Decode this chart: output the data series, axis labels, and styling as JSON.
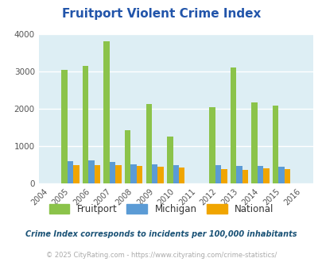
{
  "title": "Fruitport Violent Crime Index",
  "title_color": "#2255aa",
  "years": [
    2004,
    2005,
    2006,
    2007,
    2008,
    2009,
    2010,
    2011,
    2012,
    2013,
    2014,
    2015,
    2016
  ],
  "fruitport": [
    0,
    3050,
    3150,
    3800,
    1420,
    2130,
    1260,
    0,
    2040,
    3110,
    2160,
    2080,
    0
  ],
  "michigan": [
    0,
    590,
    610,
    580,
    510,
    500,
    490,
    0,
    480,
    460,
    460,
    450,
    0
  ],
  "national": [
    0,
    480,
    480,
    480,
    470,
    450,
    430,
    0,
    390,
    370,
    400,
    390,
    0
  ],
  "fruitport_color": "#8bc34a",
  "michigan_color": "#5b9bd5",
  "national_color": "#f0a500",
  "bg_color": "#ddeef4",
  "grid_color": "#ffffff",
  "ylim": [
    0,
    4000
  ],
  "yticks": [
    0,
    1000,
    2000,
    3000,
    4000
  ],
  "bar_width": 0.28,
  "footnote1": "Crime Index corresponds to incidents per 100,000 inhabitants",
  "footnote2": "© 2025 CityRating.com - https://www.cityrating.com/crime-statistics/",
  "footnote1_color": "#1a5276",
  "footnote2_color": "#aaaaaa",
  "legend_labels": [
    "Fruitport",
    "Michigan",
    "National"
  ]
}
